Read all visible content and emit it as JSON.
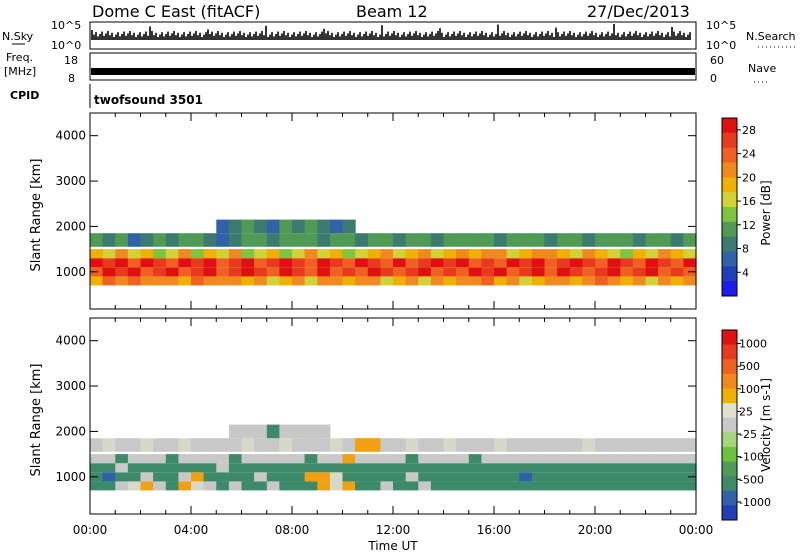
{
  "header": {
    "station": "Dome C East (fitACF)",
    "beam": "Beam 12",
    "date": "27/Dec/2013"
  },
  "nsky_panel": {
    "label": "N.Sky",
    "y_top": "10^5",
    "y_bottom": "10^0",
    "right_label": "N.Search",
    "right_top": "10^5",
    "right_bottom": "10^0"
  },
  "freq_panel": {
    "label_top": "Freq.",
    "label_unit": "[MHz]",
    "y_top": "18",
    "y_bottom": "8",
    "right_label": "Nave",
    "right_top": "60",
    "right_bottom": "0"
  },
  "cpid_panel": {
    "label": "CPID",
    "mode": "twofsound 3501"
  },
  "x_axis": {
    "label": "Time UT",
    "ticks": [
      "00:00",
      "04:00",
      "08:00",
      "12:00",
      "16:00",
      "20:00",
      "00:00"
    ]
  },
  "chart_data": [
    {
      "type": "heatmap",
      "panel": "power",
      "xlabel": "Time UT",
      "ylabel": "Slant Range [km]",
      "xlim": [
        0,
        24
      ],
      "ylim": [
        180,
        4500
      ],
      "y_ticks": [
        "1000",
        "2000",
        "3000",
        "4000"
      ],
      "colorbar": {
        "label": "Power [dB]",
        "ticks": [
          "4",
          "8",
          "12",
          "16",
          "20",
          "24",
          "28"
        ],
        "range": [
          0,
          30
        ],
        "colors": [
          "#1c1cf0",
          "#1f3fb8",
          "#2f62a8",
          "#3d7a6f",
          "#4f9a55",
          "#7dc43f",
          "#d2d236",
          "#f0b000",
          "#f08a1f",
          "#f06020",
          "#e83b1e",
          "#e01010"
        ]
      },
      "rows": [
        {
          "range": 800,
          "values": [
            18,
            24,
            20,
            24,
            22,
            20,
            22,
            18,
            24,
            20,
            22,
            20,
            18,
            20,
            16,
            18,
            22,
            16,
            20,
            22,
            18,
            20,
            22,
            16,
            18,
            20,
            16,
            20,
            18,
            22,
            20,
            24,
            18,
            22,
            16,
            18,
            20,
            22,
            18,
            22,
            24,
            20,
            18,
            22,
            16,
            20,
            18,
            20
          ]
        },
        {
          "range": 1000,
          "values": [
            24,
            28,
            26,
            28,
            24,
            26,
            28,
            24,
            26,
            28,
            24,
            26,
            28,
            26,
            24,
            28,
            26,
            24,
            28,
            24,
            26,
            24,
            28,
            26,
            24,
            26,
            28,
            24,
            26,
            24,
            28,
            26,
            28,
            24,
            26,
            28,
            24,
            28,
            26,
            24,
            26,
            28,
            24,
            26,
            28,
            24,
            26,
            24
          ]
        },
        {
          "range": 1200,
          "values": [
            28,
            26,
            28,
            24,
            28,
            26,
            24,
            28,
            26,
            28,
            24,
            26,
            28,
            24,
            26,
            28,
            26,
            24,
            28,
            26,
            24,
            28,
            26,
            24,
            28,
            24,
            26,
            28,
            26,
            28,
            24,
            26,
            24,
            28,
            26,
            28,
            24,
            26,
            28,
            26,
            24,
            28,
            26,
            24,
            28,
            26,
            24,
            28
          ]
        },
        {
          "range": 1400,
          "values": [
            18,
            16,
            20,
            16,
            18,
            14,
            16,
            20,
            14,
            18,
            16,
            20,
            14,
            16,
            18,
            14,
            16,
            20,
            16,
            18,
            14,
            16,
            18,
            20,
            16,
            18,
            20,
            16,
            18,
            20,
            18,
            22,
            20,
            16,
            18,
            20,
            22,
            18,
            16,
            20,
            18,
            16,
            14,
            18,
            16,
            20,
            18,
            16
          ]
        },
        {
          "range": 1700,
          "values": [
            10,
            8,
            10,
            6,
            8,
            10,
            8,
            12,
            10,
            8,
            6,
            8,
            10,
            12,
            8,
            10,
            12,
            10,
            8,
            12,
            10,
            8,
            10,
            12,
            8,
            10,
            12,
            8,
            10,
            12,
            10,
            12,
            8,
            10,
            12,
            10,
            8,
            10,
            12,
            8,
            10,
            12,
            10,
            8,
            12,
            10,
            8,
            10
          ]
        },
        {
          "range": 2000,
          "values": [
            0,
            0,
            0,
            0,
            0,
            0,
            0,
            0,
            0,
            0,
            6,
            8,
            10,
            8,
            6,
            10,
            8,
            10,
            8,
            6,
            8,
            0,
            0,
            0,
            0,
            0,
            0,
            0,
            0,
            0,
            0,
            0,
            0,
            0,
            0,
            0,
            0,
            0,
            0,
            0,
            0,
            0,
            0,
            0,
            0,
            0,
            0,
            0
          ]
        }
      ]
    },
    {
      "type": "heatmap",
      "panel": "velocity",
      "xlabel": "Time UT",
      "ylabel": "Slant Range [km]",
      "xlim": [
        0,
        24
      ],
      "ylim": [
        180,
        4500
      ],
      "y_ticks": [
        "1000",
        "2000",
        "3000",
        "4000"
      ],
      "colorbar": {
        "label": "Velocity [m s-1]",
        "ticks": [
          "1000",
          "500",
          "100",
          "25",
          "-25",
          "-100",
          "-500",
          "-1000"
        ],
        "colors": [
          "#1f3fb8",
          "#2f62a8",
          "#3d8a6a",
          "#4f9a55",
          "#6cc23c",
          "#a8d47c",
          "#c8c8c8",
          "#e0e0d0",
          "#f0b000",
          "#f08a1f",
          "#f06020",
          "#e83b1e",
          "#e01010"
        ]
      },
      "rows": [
        {
          "range": 800,
          "values": [
            100,
            100,
            25,
            -25,
            -100,
            25,
            100,
            -100,
            -25,
            25,
            100,
            25,
            100,
            100,
            25,
            100,
            100,
            100,
            -100,
            -25,
            -100,
            100,
            100,
            25,
            100,
            100,
            25,
            100,
            100,
            100,
            100,
            100,
            100,
            100,
            100,
            100,
            100,
            100,
            100,
            100,
            100,
            100,
            100,
            100,
            100,
            100,
            100,
            100
          ]
        },
        {
          "range": 1000,
          "values": [
            100,
            500,
            100,
            100,
            25,
            100,
            100,
            25,
            -100,
            100,
            100,
            100,
            100,
            25,
            100,
            100,
            100,
            -100,
            -100,
            -25,
            100,
            100,
            100,
            100,
            100,
            25,
            100,
            100,
            100,
            100,
            100,
            100,
            100,
            100,
            500,
            100,
            100,
            100,
            100,
            100,
            100,
            100,
            100,
            100,
            100,
            100,
            100,
            100
          ]
        },
        {
          "range": 1200,
          "values": [
            100,
            100,
            25,
            100,
            100,
            100,
            100,
            100,
            100,
            100,
            25,
            100,
            100,
            100,
            100,
            100,
            100,
            100,
            100,
            100,
            100,
            100,
            100,
            100,
            100,
            100,
            100,
            100,
            100,
            100,
            100,
            100,
            100,
            100,
            100,
            100,
            100,
            100,
            100,
            100,
            100,
            100,
            100,
            100,
            100,
            100,
            100,
            100
          ]
        },
        {
          "range": 1400,
          "values": [
            25,
            25,
            100,
            25,
            25,
            25,
            100,
            25,
            25,
            25,
            25,
            100,
            25,
            25,
            25,
            25,
            25,
            100,
            25,
            25,
            -100,
            25,
            25,
            25,
            25,
            100,
            25,
            25,
            25,
            25,
            100,
            25,
            25,
            25,
            25,
            25,
            25,
            25,
            25,
            25,
            25,
            25,
            25,
            25,
            25,
            25,
            25,
            25
          ]
        },
        {
          "range": 1700,
          "values": [
            25,
            -25,
            25,
            25,
            -25,
            25,
            25,
            -25,
            25,
            25,
            25,
            25,
            -25,
            25,
            25,
            -25,
            25,
            25,
            25,
            -25,
            25,
            -100,
            -100,
            25,
            25,
            -25,
            25,
            25,
            -25,
            25,
            25,
            25,
            -25,
            25,
            25,
            25,
            25,
            25,
            25,
            -25,
            25,
            25,
            25,
            25,
            25,
            25,
            25,
            25
          ]
        },
        {
          "range": 2000,
          "values": [
            0,
            0,
            0,
            0,
            0,
            0,
            0,
            0,
            0,
            0,
            0,
            25,
            25,
            25,
            100,
            25,
            25,
            25,
            25,
            0,
            0,
            0,
            0,
            0,
            0,
            0,
            0,
            0,
            0,
            0,
            0,
            0,
            0,
            0,
            0,
            0,
            0,
            0,
            0,
            0,
            0,
            0,
            0,
            0,
            0,
            0,
            0,
            0
          ]
        }
      ]
    }
  ]
}
